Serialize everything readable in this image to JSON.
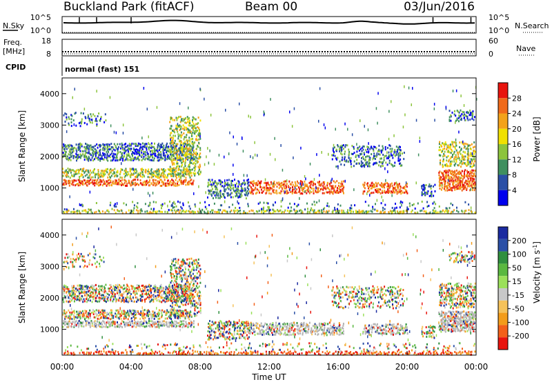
{
  "header": {
    "station": "Buckland Park (fitACF)",
    "beam": "Beam 00",
    "date": "03/Jun/2016"
  },
  "cpid": {
    "label": "CPID",
    "value": "normal (fast) 151"
  },
  "panels": {
    "nsky": {
      "label": "N.Sky",
      "tick_top": "10^5",
      "tick_bottom": "10^0",
      "right_label": "N.Search",
      "right_tick_top": "10^5",
      "right_tick_bottom": "10^0"
    },
    "freq": {
      "label_line1": "Freq.",
      "label_line2": "[MHz]",
      "tick_top": "18",
      "tick_bottom": "8",
      "right_label": "Nave",
      "right_tick_top": "60",
      "right_tick_bottom": "0"
    }
  },
  "colors": {
    "power_scale": [
      "#0000ee",
      "#2a4fa6",
      "#3f8f5f",
      "#8cc43c",
      "#f0e000",
      "#f3a21a",
      "#f06a1a",
      "#e8140e"
    ],
    "velocity_scale": [
      "#e8140e",
      "#f3601a",
      "#f39c1a",
      "#f5c25a",
      "#c8c8c8",
      "#9be05a",
      "#5ab840",
      "#2f8f3e",
      "#2a4fa6",
      "#1a2aa0"
    ],
    "ground_scatter": "#b4b4b4",
    "curve": "#000000"
  },
  "chart_data": [
    {
      "type": "heatmap",
      "title": "Power",
      "xlabel": "",
      "ylabel": "Slant Range [km]",
      "x_range_hours": [
        0,
        24
      ],
      "ylim": [
        180,
        4500
      ],
      "x_ticks": [
        "00:00",
        "04:00",
        "08:00",
        "12:00",
        "16:00",
        "20:00",
        "00:00"
      ],
      "y_ticks": [
        "1000",
        "2000",
        "3000",
        "4000"
      ],
      "colorbar": {
        "label": "Power [dB]",
        "range": [
          0,
          30
        ],
        "ticks": [
          "4",
          "8",
          "12",
          "16",
          "20",
          "24",
          "28"
        ]
      }
    },
    {
      "type": "heatmap",
      "title": "Velocity",
      "xlabel": "Time UT",
      "ylabel": "Slant Range [km]",
      "x_range_hours": [
        0,
        24
      ],
      "ylim": [
        180,
        4500
      ],
      "x_ticks": [
        "00:00",
        "04:00",
        "08:00",
        "12:00",
        "16:00",
        "20:00",
        "00:00"
      ],
      "y_ticks": [
        "1000",
        "2000",
        "3000",
        "4000"
      ],
      "colorbar": {
        "label": "Velocity [m s^-1]",
        "ticks": [
          "200",
          "100",
          "50",
          "15",
          "-15",
          "-50",
          "-100",
          "-200"
        ]
      }
    }
  ]
}
